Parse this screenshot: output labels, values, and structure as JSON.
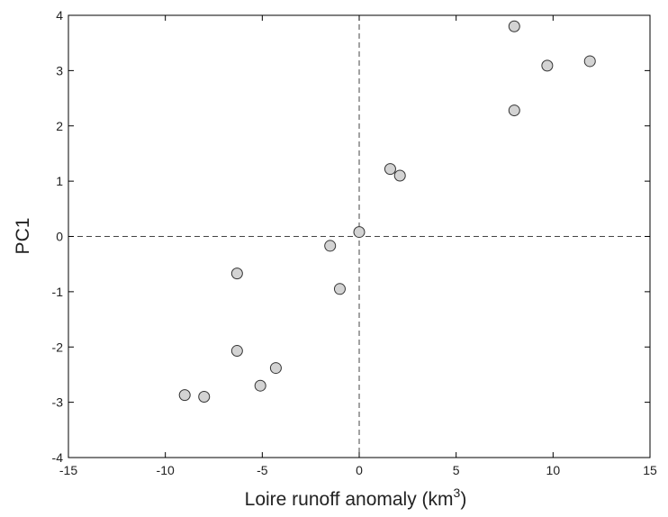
{
  "chart_data": {
    "type": "scatter",
    "title": "",
    "xlabel": "Loire runoff anomaly (km",
    "xlabel_sup": "3",
    "xlabel_end": ")",
    "ylabel": "PC1",
    "xlim": [
      -15,
      15
    ],
    "ylim": [
      -4,
      4
    ],
    "xticks": [
      -15,
      -10,
      -5,
      0,
      5,
      10,
      15
    ],
    "yticks": [
      -4,
      -3,
      -2,
      -1,
      0,
      1,
      2,
      3,
      4
    ],
    "xtick_labels": [
      "-15",
      "-10",
      "-5",
      "0",
      "5",
      "10",
      "15"
    ],
    "ytick_labels": [
      "-4",
      "-3",
      "-2",
      "-1",
      "0",
      "1",
      "2",
      "3",
      "4"
    ],
    "grid": false,
    "reference_lines": {
      "x": 0,
      "y": 0,
      "style": "dashed"
    },
    "marker_fill": "#d3d3d3",
    "marker_edge": "#333333",
    "series": [
      {
        "points": [
          {
            "x": -9.0,
            "y": -2.87
          },
          {
            "x": -8.0,
            "y": -2.9
          },
          {
            "x": -6.3,
            "y": -0.67
          },
          {
            "x": -6.3,
            "y": -2.07
          },
          {
            "x": -5.1,
            "y": -2.7
          },
          {
            "x": -4.3,
            "y": -2.38
          },
          {
            "x": -1.5,
            "y": -0.17
          },
          {
            "x": -1.0,
            "y": -0.95
          },
          {
            "x": 0.0,
            "y": 0.08
          },
          {
            "x": 1.6,
            "y": 1.22
          },
          {
            "x": 2.1,
            "y": 1.1
          },
          {
            "x": 8.0,
            "y": 3.8
          },
          {
            "x": 8.0,
            "y": 2.28
          },
          {
            "x": 9.7,
            "y": 3.09
          },
          {
            "x": 11.9,
            "y": 3.17
          }
        ]
      }
    ]
  }
}
